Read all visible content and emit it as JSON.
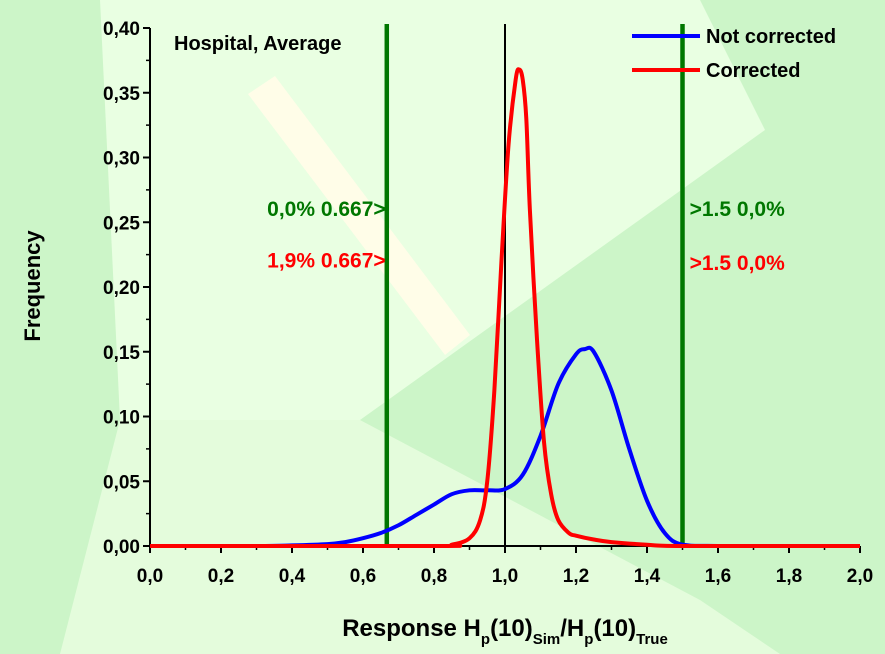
{
  "chart_data": {
    "type": "line",
    "title": "Hospital, Average",
    "ylabel": "Frequency",
    "xlabel": {
      "prefix": "Response H",
      "sub1": "p",
      "mid1": "(10)",
      "sub2": "Sim",
      "mid2": "/H",
      "sub3": "p",
      "mid3": "(10)",
      "sub4": "True"
    },
    "xlim": [
      0,
      2
    ],
    "ylim": [
      0,
      0.4
    ],
    "x_ticks": [
      0,
      0.2,
      0.4,
      0.6,
      0.8,
      1.0,
      1.2,
      1.4,
      1.6,
      1.8,
      2.0
    ],
    "x_tick_labels": [
      "0,0",
      "0,2",
      "0,4",
      "0,6",
      "0,8",
      "1,0",
      "1,2",
      "1,4",
      "1,6",
      "1,8",
      "2,0"
    ],
    "y_ticks": [
      0,
      0.05,
      0.1,
      0.15,
      0.2,
      0.25,
      0.3,
      0.35,
      0.4
    ],
    "y_tick_labels": [
      "0,00",
      "0,05",
      "0,10",
      "0,15",
      "0,20",
      "0,25",
      "0,30",
      "0,35",
      "0,40"
    ],
    "legend": "top-right",
    "series": [
      {
        "name": "Not corrected",
        "color": "#0000ff",
        "x": [
          0.0,
          0.3,
          0.4,
          0.5,
          0.55,
          0.6,
          0.65,
          0.7,
          0.75,
          0.8,
          0.85,
          0.9,
          0.95,
          1.0,
          1.05,
          1.1,
          1.15,
          1.2,
          1.225,
          1.25,
          1.3,
          1.35,
          1.4,
          1.45,
          1.5,
          1.6,
          2.0
        ],
        "y": [
          0.0,
          0.0,
          0.0005,
          0.0015,
          0.003,
          0.006,
          0.01,
          0.016,
          0.024,
          0.032,
          0.04,
          0.043,
          0.043,
          0.044,
          0.055,
          0.085,
          0.125,
          0.148,
          0.152,
          0.15,
          0.12,
          0.075,
          0.035,
          0.01,
          0.001,
          0.0,
          0.0
        ]
      },
      {
        "name": "Corrected",
        "color": "#ff0000",
        "x": [
          0.0,
          0.8,
          0.85,
          0.9,
          0.93,
          0.95,
          0.97,
          0.99,
          1.01,
          1.03,
          1.04,
          1.05,
          1.06,
          1.07,
          1.09,
          1.11,
          1.13,
          1.15,
          1.18,
          1.2,
          1.25,
          1.3,
          1.4,
          1.5,
          2.0
        ],
        "y": [
          0.0,
          0.0,
          0.001,
          0.006,
          0.02,
          0.05,
          0.12,
          0.22,
          0.31,
          0.36,
          0.368,
          0.36,
          0.33,
          0.26,
          0.16,
          0.08,
          0.04,
          0.02,
          0.01,
          0.008,
          0.005,
          0.003,
          0.001,
          0.0,
          0.0
        ]
      }
    ],
    "threshold_lines": [
      {
        "x": 0.667,
        "color": "#007700"
      },
      {
        "x": 1.0,
        "color": "#000000"
      },
      {
        "x": 1.5,
        "color": "#007700"
      }
    ],
    "annotations": [
      {
        "text": "0,0% 0.667>",
        "color": "#007700",
        "x": 0.33,
        "y": 0.255
      },
      {
        "text": "1,9% 0.667>",
        "color": "#ff0000",
        "x": 0.33,
        "y": 0.215
      },
      {
        "text": ">1.5 0,0%",
        "color": "#007700",
        "x": 1.52,
        "y": 0.255
      },
      {
        "text": ">1.5 0,0%",
        "color": "#ff0000",
        "x": 1.52,
        "y": 0.213
      }
    ],
    "colors": {
      "background": "#ccf5c8",
      "background_light": "#e9ffe2",
      "stripe": "#fffde8"
    }
  }
}
